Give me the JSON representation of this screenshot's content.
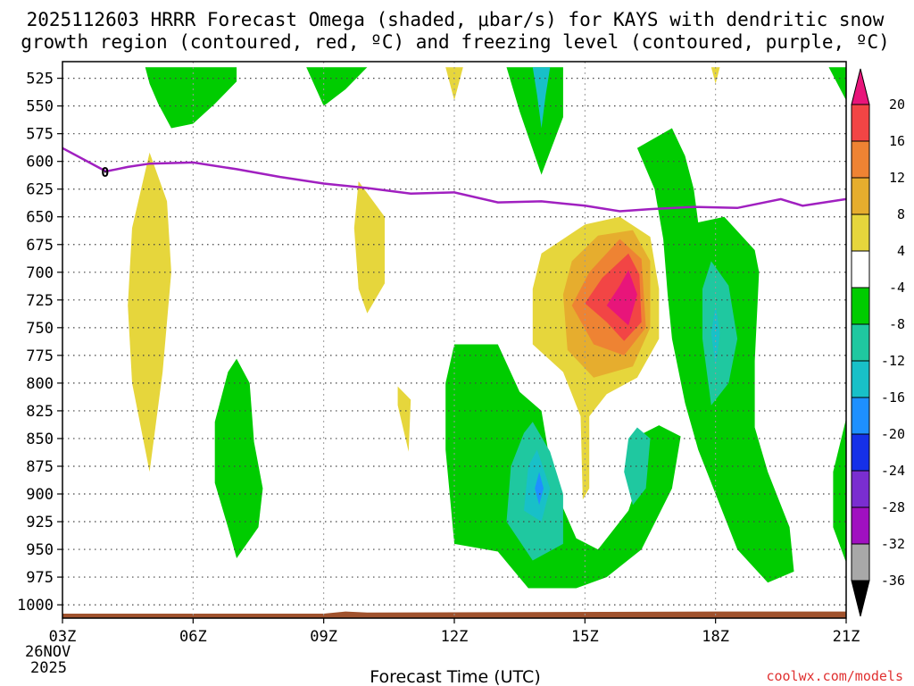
{
  "title_line1": "2025112603 HRRR Forecast Omega (shaded, μbar/s) for KAYS with dendritic snow",
  "title_line2": "growth region (contoured, red, ºC) and freezing level (contoured, purple, ºC)",
  "credit": "coolwx.com/models",
  "colors": {
    "green": "#00cc00",
    "yellow": "#e6d63c",
    "gold": "#e6ad2e",
    "orange": "#ee8333",
    "red": "#f24545",
    "magenta": "#e8157a",
    "teal": "#1fc8a0",
    "cyan": "#18c0c8",
    "blue": "#1e90ff",
    "freezing_line": "#a020c0",
    "ground": "#a0522d"
  },
  "chart_data": {
    "type": "heatmap",
    "title": "2025112603 HRRR Forecast Omega for KAYS",
    "xlabel": "Forecast Time (UTC)",
    "ylabel": "",
    "x_ticks": [
      "03Z",
      "06Z",
      "09Z",
      "12Z",
      "15Z",
      "18Z",
      "21Z"
    ],
    "x_tick_hours": [
      3,
      6,
      9,
      12,
      15,
      18,
      21
    ],
    "x_date_line1": "26NOV",
    "x_date_line2": "2025",
    "xlim": [
      3,
      21
    ],
    "y_ticks": [
      525,
      550,
      575,
      600,
      625,
      650,
      675,
      700,
      725,
      750,
      775,
      800,
      825,
      850,
      875,
      900,
      925,
      950,
      975,
      1000
    ],
    "ylim": [
      510,
      1012
    ],
    "colorbar": {
      "labels": [
        "20",
        "16",
        "12",
        "8",
        "4",
        "-4",
        "-8",
        "-12",
        "-16",
        "-20",
        "-24",
        "-28",
        "-32",
        "-36"
      ],
      "bins": [
        {
          "min": 20,
          "max": 24,
          "color": "#e8157a"
        },
        {
          "min": 16,
          "max": 20,
          "color": "#f24545"
        },
        {
          "min": 12,
          "max": 16,
          "color": "#ee8333"
        },
        {
          "min": 8,
          "max": 12,
          "color": "#e6ad2e"
        },
        {
          "min": 4,
          "max": 8,
          "color": "#e6d63c"
        },
        {
          "min": -4,
          "max": 4,
          "color": "#ffffff"
        },
        {
          "min": -8,
          "max": -4,
          "color": "#00cc00"
        },
        {
          "min": -12,
          "max": -8,
          "color": "#1fc8a0"
        },
        {
          "min": -16,
          "max": -12,
          "color": "#18c0c8"
        },
        {
          "min": -20,
          "max": -16,
          "color": "#1e90ff"
        },
        {
          "min": -24,
          "max": -20,
          "color": "#1530e8"
        },
        {
          "min": -28,
          "max": -24,
          "color": "#7a2ed0"
        },
        {
          "min": -32,
          "max": -28,
          "color": "#a010c0"
        },
        {
          "min": -36,
          "max": -32,
          "color": "#a8a8a8"
        },
        {
          "min": -40,
          "max": -36,
          "color": "#000000"
        }
      ]
    },
    "freezing_level": {
      "label": "0",
      "points": [
        [
          3.0,
          588
        ],
        [
          4.0,
          609
        ],
        [
          4.5,
          605
        ],
        [
          5.0,
          602
        ],
        [
          6.0,
          601
        ],
        [
          7.0,
          607
        ],
        [
          8.0,
          614
        ],
        [
          9.0,
          620
        ],
        [
          10.0,
          624
        ],
        [
          11.0,
          629
        ],
        [
          12.0,
          628
        ],
        [
          13.0,
          637
        ],
        [
          14.0,
          636
        ],
        [
          15.0,
          640
        ],
        [
          15.8,
          645
        ],
        [
          16.5,
          643
        ],
        [
          17.5,
          641
        ],
        [
          18.5,
          642
        ],
        [
          19.5,
          634
        ],
        [
          20.0,
          640
        ],
        [
          21.0,
          634
        ]
      ]
    },
    "regions": [
      {
        "id": "green-top-a",
        "band": "green",
        "points": [
          [
            6.0,
            515
          ],
          [
            4.9,
            515
          ],
          [
            5.0,
            530
          ],
          [
            5.2,
            548
          ],
          [
            5.5,
            570
          ],
          [
            6.0,
            566
          ],
          [
            6.5,
            548
          ],
          [
            7.0,
            528
          ],
          [
            7.0,
            515
          ]
        ]
      },
      {
        "id": "green-top-b",
        "band": "green",
        "points": [
          [
            8.6,
            515
          ],
          [
            9.0,
            550
          ],
          [
            9.5,
            535
          ],
          [
            10.0,
            515
          ]
        ]
      },
      {
        "id": "yellow-top-12z",
        "band": "yellow",
        "points": [
          [
            11.8,
            515
          ],
          [
            12.0,
            545
          ],
          [
            12.2,
            515
          ]
        ]
      },
      {
        "id": "green-top-14z",
        "band": "green",
        "points": [
          [
            13.2,
            515
          ],
          [
            13.5,
            555
          ],
          [
            14.0,
            612
          ],
          [
            14.5,
            560
          ],
          [
            14.5,
            515
          ]
        ]
      },
      {
        "id": "cyan-top-14z",
        "band": "cyan",
        "points": [
          [
            13.8,
            515
          ],
          [
            13.9,
            540
          ],
          [
            14.0,
            570
          ],
          [
            14.1,
            540
          ],
          [
            14.2,
            515
          ]
        ]
      },
      {
        "id": "yellow-top-18z",
        "band": "yellow",
        "points": [
          [
            17.9,
            515
          ],
          [
            18.0,
            530
          ],
          [
            18.1,
            515
          ]
        ]
      },
      {
        "id": "green-top-21z",
        "band": "green",
        "points": [
          [
            20.6,
            515
          ],
          [
            21.0,
            545
          ],
          [
            21.0,
            515
          ]
        ]
      },
      {
        "id": "yellow-left-05z",
        "band": "yellow",
        "points": [
          [
            5.0,
            592
          ],
          [
            5.4,
            636
          ],
          [
            5.5,
            700
          ],
          [
            5.3,
            790
          ],
          [
            5.0,
            880
          ],
          [
            4.6,
            800
          ],
          [
            4.5,
            730
          ],
          [
            4.6,
            660
          ]
        ]
      },
      {
        "id": "yellow-09z",
        "band": "yellow",
        "points": [
          [
            9.8,
            618
          ],
          [
            10.4,
            650
          ],
          [
            10.4,
            710
          ],
          [
            10.0,
            737
          ],
          [
            9.8,
            715
          ],
          [
            9.7,
            660
          ]
        ]
      },
      {
        "id": "yellow-11z",
        "band": "yellow",
        "points": [
          [
            10.7,
            803
          ],
          [
            11.0,
            815
          ],
          [
            10.95,
            862
          ],
          [
            10.7,
            820
          ]
        ]
      },
      {
        "id": "green-07z",
        "band": "green",
        "points": [
          [
            7.0,
            778
          ],
          [
            7.3,
            800
          ],
          [
            7.4,
            853
          ],
          [
            7.6,
            895
          ],
          [
            7.5,
            930
          ],
          [
            7.0,
            958
          ],
          [
            6.8,
            930
          ],
          [
            6.5,
            890
          ],
          [
            6.5,
            835
          ],
          [
            6.8,
            790
          ]
        ]
      },
      {
        "id": "green-12z-base",
        "band": "green",
        "points": [
          [
            12.0,
            765
          ],
          [
            13.0,
            765
          ],
          [
            13.5,
            808
          ],
          [
            14.0,
            825
          ],
          [
            14.3,
            895
          ],
          [
            14.8,
            940
          ],
          [
            15.3,
            950
          ],
          [
            16.0,
            915
          ],
          [
            16.3,
            880
          ],
          [
            16.1,
            850
          ],
          [
            16.7,
            838
          ],
          [
            17.2,
            848
          ],
          [
            17.0,
            895
          ],
          [
            16.3,
            950
          ],
          [
            15.5,
            975
          ],
          [
            14.8,
            985
          ],
          [
            13.7,
            985
          ],
          [
            13.0,
            952
          ],
          [
            12.0,
            945
          ],
          [
            11.8,
            860
          ],
          [
            11.8,
            800
          ]
        ]
      },
      {
        "id": "teal-14z",
        "band": "teal",
        "points": [
          [
            13.8,
            835
          ],
          [
            14.2,
            862
          ],
          [
            14.5,
            900
          ],
          [
            14.5,
            945
          ],
          [
            13.8,
            960
          ],
          [
            13.2,
            925
          ],
          [
            13.3,
            875
          ],
          [
            13.6,
            845
          ]
        ]
      },
      {
        "id": "cyan-14z",
        "band": "cyan",
        "points": [
          [
            13.9,
            860
          ],
          [
            14.2,
            895
          ],
          [
            14.0,
            925
          ],
          [
            13.6,
            915
          ],
          [
            13.7,
            875
          ]
        ]
      },
      {
        "id": "blue-14z",
        "band": "blue",
        "points": [
          [
            13.95,
            880
          ],
          [
            14.05,
            895
          ],
          [
            13.95,
            910
          ],
          [
            13.85,
            895
          ]
        ]
      },
      {
        "id": "teal-16z",
        "band": "teal",
        "points": [
          [
            16.2,
            840
          ],
          [
            16.5,
            850
          ],
          [
            16.4,
            895
          ],
          [
            16.1,
            910
          ],
          [
            15.9,
            880
          ],
          [
            16.0,
            850
          ]
        ]
      },
      {
        "id": "green-18z",
        "band": "green",
        "points": [
          [
            16.2,
            588
          ],
          [
            17.0,
            570
          ],
          [
            17.3,
            595
          ],
          [
            17.5,
            625
          ],
          [
            17.6,
            655
          ],
          [
            18.2,
            650
          ],
          [
            18.9,
            680
          ],
          [
            19.0,
            700
          ],
          [
            18.9,
            780
          ],
          [
            18.9,
            840
          ],
          [
            19.2,
            880
          ],
          [
            19.7,
            930
          ],
          [
            19.8,
            970
          ],
          [
            19.2,
            980
          ],
          [
            18.5,
            950
          ],
          [
            18.0,
            900
          ],
          [
            17.6,
            860
          ],
          [
            17.3,
            818
          ],
          [
            17.0,
            760
          ],
          [
            16.9,
            720
          ],
          [
            16.8,
            670
          ],
          [
            16.6,
            625
          ]
        ]
      },
      {
        "id": "teal-18z",
        "band": "teal",
        "points": [
          [
            17.9,
            690
          ],
          [
            18.3,
            712
          ],
          [
            18.5,
            760
          ],
          [
            18.3,
            800
          ],
          [
            17.9,
            820
          ],
          [
            17.7,
            760
          ],
          [
            17.7,
            715
          ]
        ]
      },
      {
        "id": "cyan-18z",
        "band": "cyan",
        "points": [
          [
            18.0,
            730
          ],
          [
            18.1,
            755
          ],
          [
            18.0,
            785
          ],
          [
            17.9,
            755
          ]
        ]
      },
      {
        "id": "green-21z-right",
        "band": "green",
        "points": [
          [
            21.0,
            832
          ],
          [
            21.0,
            962
          ],
          [
            20.7,
            930
          ],
          [
            20.7,
            880
          ]
        ]
      },
      {
        "id": "yellow-15z",
        "band": "yellow",
        "points": [
          [
            15.0,
            657
          ],
          [
            15.8,
            650
          ],
          [
            16.5,
            668
          ],
          [
            16.7,
            715
          ],
          [
            16.7,
            760
          ],
          [
            16.2,
            795
          ],
          [
            15.5,
            810
          ],
          [
            15.1,
            830
          ],
          [
            15.1,
            895
          ],
          [
            14.95,
            905
          ],
          [
            14.9,
            830
          ],
          [
            14.5,
            790
          ],
          [
            13.8,
            765
          ],
          [
            13.8,
            715
          ],
          [
            14.0,
            683
          ]
        ]
      },
      {
        "id": "gold-15z",
        "band": "gold",
        "points": [
          [
            15.3,
            667
          ],
          [
            16.1,
            662
          ],
          [
            16.5,
            690
          ],
          [
            16.5,
            750
          ],
          [
            16.1,
            785
          ],
          [
            15.2,
            795
          ],
          [
            14.6,
            770
          ],
          [
            14.5,
            720
          ],
          [
            14.7,
            690
          ]
        ]
      },
      {
        "id": "orange-15z",
        "band": "orange",
        "points": [
          [
            15.8,
            670
          ],
          [
            16.3,
            688
          ],
          [
            16.4,
            750
          ],
          [
            15.9,
            775
          ],
          [
            15.2,
            765
          ],
          [
            14.7,
            730
          ],
          [
            15.1,
            700
          ]
        ]
      },
      {
        "id": "red-15z",
        "band": "red",
        "points": [
          [
            16.0,
            683
          ],
          [
            16.25,
            702
          ],
          [
            16.3,
            745
          ],
          [
            15.9,
            762
          ],
          [
            15.5,
            745
          ],
          [
            15.0,
            728
          ],
          [
            15.4,
            705
          ]
        ]
      },
      {
        "id": "magenta-15z",
        "band": "magenta",
        "points": [
          [
            16.0,
            698
          ],
          [
            16.2,
            720
          ],
          [
            16.0,
            748
          ],
          [
            15.5,
            730
          ],
          [
            15.8,
            712
          ]
        ]
      }
    ],
    "ground": [
      [
        3.0,
        1008
      ],
      [
        9.0,
        1008
      ],
      [
        9.5,
        1006
      ],
      [
        10.0,
        1007
      ],
      [
        18.0,
        1006
      ],
      [
        21.0,
        1006
      ],
      [
        21.0,
        1012
      ],
      [
        3.0,
        1012
      ]
    ]
  }
}
